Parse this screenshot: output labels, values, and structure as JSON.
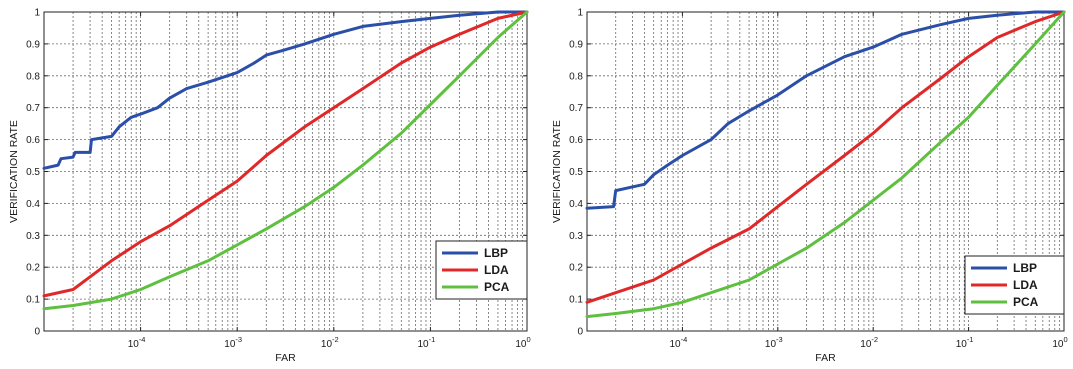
{
  "chart_data": [
    {
      "type": "line",
      "title": "",
      "xlabel": "FAR",
      "ylabel": "VERIFICATION RATE",
      "xscale": "log",
      "xlim": [
        1e-05,
        1
      ],
      "ylim": [
        0,
        1
      ],
      "grid": true,
      "legend_position": "bottom-right",
      "x_tick_labels": [
        {
          "base": "10",
          "exp": "-4",
          "value": 0.0001
        },
        {
          "base": "10",
          "exp": "-3",
          "value": 0.001
        },
        {
          "base": "10",
          "exp": "-2",
          "value": 0.01
        },
        {
          "base": "10",
          "exp": "-1",
          "value": 0.1
        },
        {
          "base": "10",
          "exp": "0",
          "value": 1
        }
      ],
      "y_tick_labels": [
        "0",
        "0.1",
        "0.2",
        "0.3",
        "0.4",
        "0.5",
        "0.6",
        "0.7",
        "0.8",
        "0.9",
        "1"
      ],
      "series": [
        {
          "name": "LBP",
          "color": "#2b4fa8",
          "x": [
            1e-05,
            1.4e-05,
            1.5e-05,
            2e-05,
            2.1e-05,
            3e-05,
            3.1e-05,
            5e-05,
            6e-05,
            8e-05,
            0.0001,
            0.00015,
            0.0002,
            0.0003,
            0.0005,
            0.001,
            0.0015,
            0.002,
            0.003,
            0.005,
            0.01,
            0.02,
            0.05,
            0.1,
            0.2,
            0.5,
            1
          ],
          "y": [
            0.51,
            0.52,
            0.54,
            0.545,
            0.56,
            0.56,
            0.6,
            0.61,
            0.64,
            0.67,
            0.68,
            0.7,
            0.73,
            0.76,
            0.78,
            0.81,
            0.84,
            0.865,
            0.88,
            0.9,
            0.93,
            0.955,
            0.97,
            0.98,
            0.99,
            1.0,
            1.0
          ]
        },
        {
          "name": "LDA",
          "color": "#e02828",
          "x": [
            1e-05,
            2e-05,
            3e-05,
            5e-05,
            0.0001,
            0.0002,
            0.0005,
            0.001,
            0.002,
            0.005,
            0.01,
            0.02,
            0.05,
            0.1,
            0.2,
            0.5,
            1
          ],
          "y": [
            0.11,
            0.13,
            0.17,
            0.22,
            0.28,
            0.33,
            0.41,
            0.47,
            0.55,
            0.64,
            0.7,
            0.76,
            0.84,
            0.89,
            0.93,
            0.98,
            1.0
          ]
        },
        {
          "name": "PCA",
          "color": "#5fc040",
          "x": [
            1e-05,
            2e-05,
            5e-05,
            0.0001,
            0.0002,
            0.0005,
            0.001,
            0.002,
            0.005,
            0.01,
            0.02,
            0.05,
            0.1,
            0.2,
            0.5,
            1
          ],
          "y": [
            0.07,
            0.08,
            0.1,
            0.13,
            0.17,
            0.22,
            0.27,
            0.32,
            0.39,
            0.45,
            0.52,
            0.62,
            0.71,
            0.8,
            0.92,
            1.0
          ]
        }
      ]
    },
    {
      "type": "line",
      "title": "",
      "xlabel": "FAR",
      "ylabel": "VERIFICATION RATE",
      "xscale": "log",
      "xlim": [
        1e-05,
        1
      ],
      "ylim": [
        0,
        1
      ],
      "grid": true,
      "legend_position": "bottom-right",
      "x_tick_labels": [
        {
          "base": "10",
          "exp": "-4",
          "value": 0.0001
        },
        {
          "base": "10",
          "exp": "-3",
          "value": 0.001
        },
        {
          "base": "10",
          "exp": "-2",
          "value": 0.01
        },
        {
          "base": "10",
          "exp": "-1",
          "value": 0.1
        },
        {
          "base": "10",
          "exp": "0",
          "value": 1
        }
      ],
      "y_tick_labels": [
        "0",
        "0.1",
        "0.2",
        "0.3",
        "0.4",
        "0.5",
        "0.6",
        "0.7",
        "0.8",
        "0.9",
        "1"
      ],
      "series": [
        {
          "name": "LBP",
          "color": "#2b4fa8",
          "x": [
            1e-05,
            1.9e-05,
            2e-05,
            4e-05,
            5e-05,
            7e-05,
            0.0001,
            0.0002,
            0.0003,
            0.0005,
            0.001,
            0.002,
            0.005,
            0.01,
            0.02,
            0.05,
            0.1,
            0.2,
            0.5,
            1
          ],
          "y": [
            0.385,
            0.39,
            0.44,
            0.46,
            0.49,
            0.52,
            0.55,
            0.6,
            0.65,
            0.69,
            0.74,
            0.8,
            0.86,
            0.89,
            0.93,
            0.96,
            0.98,
            0.99,
            1.0,
            1.0
          ]
        },
        {
          "name": "LDA",
          "color": "#e02828",
          "x": [
            1e-05,
            2e-05,
            5e-05,
            0.0001,
            0.0002,
            0.0005,
            0.001,
            0.002,
            0.005,
            0.01,
            0.02,
            0.05,
            0.1,
            0.2,
            0.5,
            1
          ],
          "y": [
            0.09,
            0.12,
            0.16,
            0.21,
            0.26,
            0.32,
            0.39,
            0.46,
            0.55,
            0.62,
            0.7,
            0.79,
            0.86,
            0.92,
            0.97,
            1.0
          ]
        },
        {
          "name": "PCA",
          "color": "#5fc040",
          "x": [
            1e-05,
            2e-05,
            5e-05,
            0.0001,
            0.0002,
            0.0005,
            0.001,
            0.002,
            0.005,
            0.01,
            0.02,
            0.05,
            0.1,
            0.2,
            0.5,
            1
          ],
          "y": [
            0.045,
            0.055,
            0.07,
            0.09,
            0.12,
            0.16,
            0.21,
            0.26,
            0.34,
            0.41,
            0.48,
            0.59,
            0.67,
            0.77,
            0.9,
            1.0
          ]
        }
      ]
    }
  ]
}
